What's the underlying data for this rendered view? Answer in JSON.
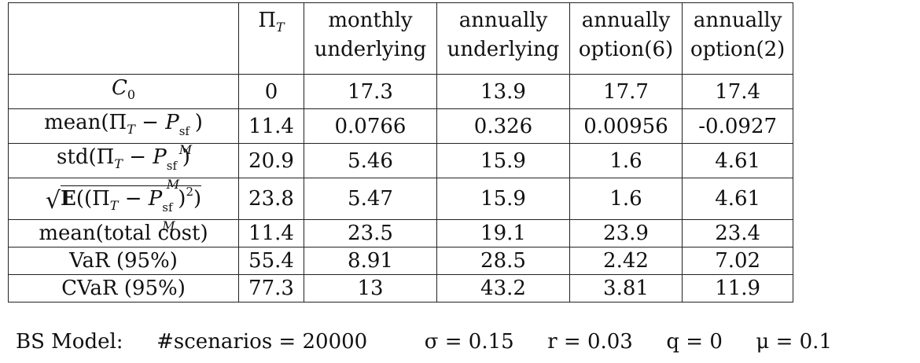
{
  "table": {
    "headers": [
      {
        "line1": "",
        "line2": ""
      },
      {
        "line1": "Π",
        "sub": "T",
        "line2": ""
      },
      {
        "line1": "monthly",
        "line2": "underlying"
      },
      {
        "line1": "annually",
        "line2": "underlying"
      },
      {
        "line1": "annually",
        "line2": "option(6)"
      },
      {
        "line1": "annually",
        "line2": "option(2)"
      }
    ],
    "rows": [
      {
        "label": "C0",
        "values": [
          "0",
          "17.3",
          "13.9",
          "17.7",
          "17.4"
        ]
      },
      {
        "label": "mean(Π_T − P^sf_M)",
        "values": [
          "11.4",
          "0.0766",
          "0.326",
          "0.00956",
          "-0.0927"
        ]
      },
      {
        "label": "std(Π_T − P^sf_M)",
        "values": [
          "20.9",
          "5.46",
          "15.9",
          "1.6",
          "4.61"
        ]
      },
      {
        "label": "√E((Π_T − P^sf_M)²)",
        "values": [
          "23.8",
          "5.47",
          "15.9",
          "1.6",
          "4.61"
        ]
      },
      {
        "label": "mean(total cost)",
        "values": [
          "11.4",
          "23.5",
          "19.1",
          "23.9",
          "23.4"
        ]
      },
      {
        "label": "VaR (95%)",
        "values": [
          "55.4",
          "8.91",
          "28.5",
          "2.42",
          "7.02"
        ]
      },
      {
        "label": "CVaR (95%)",
        "values": [
          "77.3",
          "13",
          "43.2",
          "3.81",
          "11.9"
        ]
      }
    ]
  },
  "footer": {
    "model": "BS Model:",
    "scenarios": "#scenarios = 20000",
    "sigma": "σ = 0.15",
    "r": "r = 0.03",
    "q": "q = 0",
    "mu": "μ = 0.1"
  }
}
